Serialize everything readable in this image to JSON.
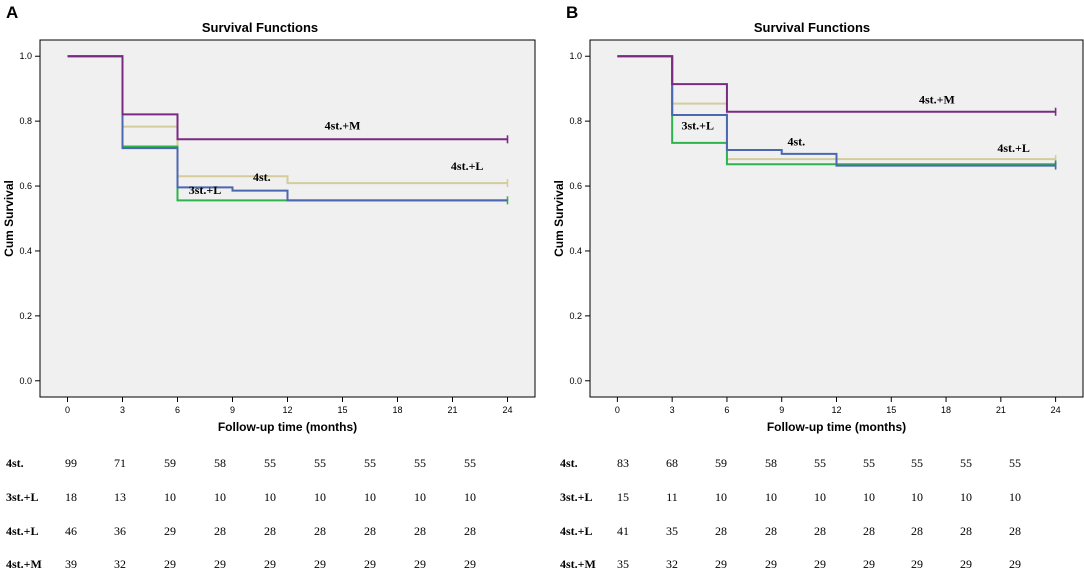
{
  "chart_data": [
    {
      "type": "line",
      "panel_letter": "A",
      "title": "Survival Functions",
      "xlabel": "Follow-up time (months)",
      "ylabel": "Cum Survival",
      "x_ticks": [
        "0",
        "3",
        "6",
        "9",
        "12",
        "15",
        "18",
        "21",
        "24"
      ],
      "y_ticks": [
        "0.0",
        "0.2",
        "0.4",
        "0.6",
        "0.8",
        "1.0"
      ],
      "xlim": [
        -1.5,
        25.5
      ],
      "ylim": [
        -0.05,
        1.05
      ],
      "series": [
        {
          "name": "4st.+L",
          "color": "#d4cc9a",
          "steps": [
            [
              0,
              1.0
            ],
            [
              3,
              0.783
            ],
            [
              6,
              0.63
            ],
            [
              12,
              0.609
            ],
            [
              24,
              0.609
            ]
          ],
          "censor": [
            [
              24,
              0.609
            ]
          ]
        },
        {
          "name": "3st.+L",
          "color": "#2fb34c",
          "steps": [
            [
              0,
              1.0
            ],
            [
              3,
              0.722
            ],
            [
              6,
              0.556
            ],
            [
              24,
              0.556
            ]
          ],
          "censor": [
            [
              24,
              0.556
            ]
          ]
        },
        {
          "name": "4st.",
          "color": "#4a67b0",
          "steps": [
            [
              0,
              1.0
            ],
            [
              3,
              0.717
            ],
            [
              6,
              0.596
            ],
            [
              9,
              0.586
            ],
            [
              12,
              0.556
            ],
            [
              24,
              0.556
            ]
          ],
          "censor": []
        },
        {
          "name": "4st.+M",
          "color": "#7b2a82",
          "steps": [
            [
              0,
              1.0
            ],
            [
              3,
              0.821
            ],
            [
              6,
              0.744
            ],
            [
              24,
              0.744
            ]
          ],
          "censor": [
            [
              24,
              0.744
            ]
          ]
        }
      ],
      "curve_labels": [
        {
          "text": "4st.+M",
          "x": 15,
          "y": 0.775
        },
        {
          "text": "4st.+L",
          "x": 21.8,
          "y": 0.65
        },
        {
          "text": "4st.",
          "x": 10.6,
          "y": 0.615
        },
        {
          "text": "3st.+L",
          "x": 7.5,
          "y": 0.575
        }
      ],
      "risk_table": {
        "columns": [
          "0",
          "3",
          "6",
          "9",
          "12",
          "15",
          "18",
          "21",
          "24"
        ],
        "rows": [
          {
            "label": "4st.",
            "values": [
              "99",
              "71",
              "59",
              "58",
              "55",
              "55",
              "55",
              "55",
              "55"
            ]
          },
          {
            "label": "3st.+L",
            "values": [
              "18",
              "13",
              "10",
              "10",
              "10",
              "10",
              "10",
              "10",
              "10"
            ]
          },
          {
            "label": "4st.+L",
            "values": [
              "46",
              "36",
              "29",
              "28",
              "28",
              "28",
              "28",
              "28",
              "28"
            ]
          },
          {
            "label": "4st.+M",
            "values": [
              "39",
              "32",
              "29",
              "29",
              "29",
              "29",
              "29",
              "29",
              "29"
            ]
          }
        ]
      }
    },
    {
      "type": "line",
      "panel_letter": "B",
      "title": "Survival Functions",
      "xlabel": "Follow-up time (months)",
      "ylabel": "Cum Survival",
      "x_ticks": [
        "0",
        "3",
        "6",
        "9",
        "12",
        "15",
        "18",
        "21",
        "24"
      ],
      "y_ticks": [
        "0.0",
        "0.2",
        "0.4",
        "0.6",
        "0.8",
        "1.0"
      ],
      "xlim": [
        -1.5,
        25.5
      ],
      "ylim": [
        -0.05,
        1.05
      ],
      "series": [
        {
          "name": "4st.+L",
          "color": "#d4cc9a",
          "steps": [
            [
              0,
              1.0
            ],
            [
              3,
              0.854
            ],
            [
              6,
              0.683
            ],
            [
              24,
              0.683
            ]
          ],
          "censor": [
            [
              24,
              0.683
            ]
          ]
        },
        {
          "name": "3st.+L",
          "color": "#2fb34c",
          "steps": [
            [
              0,
              1.0
            ],
            [
              3,
              0.733
            ],
            [
              6,
              0.667
            ],
            [
              24,
              0.667
            ]
          ],
          "censor": [
            [
              24,
              0.667
            ]
          ]
        },
        {
          "name": "4st.",
          "color": "#4a67b0",
          "steps": [
            [
              0,
              1.0
            ],
            [
              3,
              0.819
            ],
            [
              6,
              0.711
            ],
            [
              9,
              0.699
            ],
            [
              12,
              0.663
            ],
            [
              24,
              0.663
            ]
          ],
          "censor": [
            [
              24,
              0.663
            ]
          ]
        },
        {
          "name": "4st.+M",
          "color": "#7b2a82",
          "steps": [
            [
              0,
              1.0
            ],
            [
              3,
              0.914
            ],
            [
              6,
              0.829
            ],
            [
              24,
              0.829
            ]
          ],
          "censor": [
            [
              24,
              0.829
            ]
          ]
        }
      ],
      "curve_labels": [
        {
          "text": "4st.+M",
          "x": 17.5,
          "y": 0.855
        },
        {
          "text": "3st.+L",
          "x": 4.4,
          "y": 0.775
        },
        {
          "text": "4st.",
          "x": 9.8,
          "y": 0.725
        },
        {
          "text": "4st.+L",
          "x": 21.7,
          "y": 0.705
        }
      ],
      "risk_table": {
        "columns": [
          "0",
          "3",
          "6",
          "9",
          "12",
          "15",
          "18",
          "21",
          "24"
        ],
        "rows": [
          {
            "label": "4st.",
            "values": [
              "83",
              "68",
              "59",
              "58",
              "55",
              "55",
              "55",
              "55",
              "55"
            ]
          },
          {
            "label": "3st.+L",
            "values": [
              "15",
              "11",
              "10",
              "10",
              "10",
              "10",
              "10",
              "10",
              "10"
            ]
          },
          {
            "label": "4st.+L",
            "values": [
              "41",
              "35",
              "28",
              "28",
              "28",
              "28",
              "28",
              "28",
              "28"
            ]
          },
          {
            "label": "4st.+M",
            "values": [
              "35",
              "32",
              "29",
              "29",
              "29",
              "29",
              "29",
              "29",
              "29"
            ]
          }
        ]
      }
    }
  ]
}
